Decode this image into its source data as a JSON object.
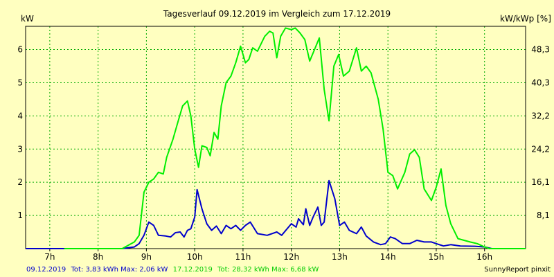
{
  "chart_data": {
    "type": "line",
    "title": "Tagesverlauf 09.12.2019 im Vergleich zum 17.12.2019",
    "ylabel_left": "kW",
    "ylabel_right": "kW/kWp [%]",
    "x_ticks": [
      "7h",
      "8h",
      "9h",
      "10h",
      "11h",
      "12h",
      "13h",
      "14h",
      "15h",
      "16h"
    ],
    "y_ticks_left": [
      "1",
      "2",
      "3",
      "4",
      "5",
      "6"
    ],
    "y_ticks_right": [
      "8,1",
      "16,1",
      "24,2",
      "32,2",
      "40,3",
      "48,3"
    ],
    "xlim": [
      6.5,
      16.85
    ],
    "ylim": [
      0,
      6.7
    ],
    "grid": true,
    "series": [
      {
        "name": "09.12.2019",
        "color": "#0000cc",
        "points": [
          [
            6.5,
            0
          ],
          [
            7.3,
            0
          ],
          [
            8.5,
            0
          ],
          [
            8.6,
            0.02
          ],
          [
            8.75,
            0.05
          ],
          [
            8.85,
            0.15
          ],
          [
            8.95,
            0.4
          ],
          [
            9.05,
            0.8
          ],
          [
            9.15,
            0.7
          ],
          [
            9.25,
            0.4
          ],
          [
            9.4,
            0.38
          ],
          [
            9.5,
            0.35
          ],
          [
            9.6,
            0.48
          ],
          [
            9.7,
            0.5
          ],
          [
            9.78,
            0.35
          ],
          [
            9.85,
            0.55
          ],
          [
            9.92,
            0.6
          ],
          [
            10.0,
            0.95
          ],
          [
            10.05,
            1.78
          ],
          [
            10.15,
            1.2
          ],
          [
            10.25,
            0.75
          ],
          [
            10.35,
            0.55
          ],
          [
            10.45,
            0.68
          ],
          [
            10.55,
            0.45
          ],
          [
            10.65,
            0.7
          ],
          [
            10.75,
            0.6
          ],
          [
            10.85,
            0.7
          ],
          [
            10.95,
            0.55
          ],
          [
            11.05,
            0.7
          ],
          [
            11.15,
            0.8
          ],
          [
            11.3,
            0.45
          ],
          [
            11.5,
            0.4
          ],
          [
            11.7,
            0.5
          ],
          [
            11.8,
            0.4
          ],
          [
            12.0,
            0.75
          ],
          [
            12.1,
            0.65
          ],
          [
            12.15,
            0.9
          ],
          [
            12.25,
            0.72
          ],
          [
            12.3,
            1.2
          ],
          [
            12.38,
            0.7
          ],
          [
            12.45,
            0.95
          ],
          [
            12.55,
            1.25
          ],
          [
            12.62,
            0.7
          ],
          [
            12.68,
            0.8
          ],
          [
            12.78,
            2.05
          ],
          [
            12.9,
            1.5
          ],
          [
            13.0,
            0.7
          ],
          [
            13.1,
            0.8
          ],
          [
            13.2,
            0.55
          ],
          [
            13.35,
            0.45
          ],
          [
            13.45,
            0.65
          ],
          [
            13.55,
            0.38
          ],
          [
            13.7,
            0.2
          ],
          [
            13.85,
            0.12
          ],
          [
            13.95,
            0.15
          ],
          [
            14.05,
            0.35
          ],
          [
            14.15,
            0.3
          ],
          [
            14.3,
            0.15
          ],
          [
            14.45,
            0.15
          ],
          [
            14.6,
            0.25
          ],
          [
            14.75,
            0.2
          ],
          [
            14.9,
            0.2
          ],
          [
            15.0,
            0.15
          ],
          [
            15.15,
            0.08
          ],
          [
            15.3,
            0.12
          ],
          [
            15.5,
            0.08
          ],
          [
            15.8,
            0.07
          ],
          [
            16.0,
            0.05
          ],
          [
            16.15,
            0
          ],
          [
            16.85,
            0
          ]
        ]
      },
      {
        "name": "17.12.2019",
        "color": "#00ee00",
        "points": [
          [
            7.3,
            0
          ],
          [
            8.5,
            0
          ],
          [
            8.75,
            0.2
          ],
          [
            8.85,
            0.4
          ],
          [
            8.95,
            1.7
          ],
          [
            9.05,
            2.0
          ],
          [
            9.15,
            2.1
          ],
          [
            9.25,
            2.3
          ],
          [
            9.35,
            2.25
          ],
          [
            9.42,
            2.75
          ],
          [
            9.55,
            3.3
          ],
          [
            9.65,
            3.8
          ],
          [
            9.75,
            4.3
          ],
          [
            9.85,
            4.45
          ],
          [
            9.92,
            4.0
          ],
          [
            10.0,
            3.0
          ],
          [
            10.08,
            2.45
          ],
          [
            10.15,
            3.1
          ],
          [
            10.25,
            3.05
          ],
          [
            10.32,
            2.8
          ],
          [
            10.4,
            3.5
          ],
          [
            10.48,
            3.3
          ],
          [
            10.55,
            4.3
          ],
          [
            10.65,
            5.0
          ],
          [
            10.75,
            5.2
          ],
          [
            10.85,
            5.6
          ],
          [
            10.95,
            6.1
          ],
          [
            11.05,
            5.6
          ],
          [
            11.12,
            5.7
          ],
          [
            11.2,
            6.05
          ],
          [
            11.3,
            5.95
          ],
          [
            11.45,
            6.4
          ],
          [
            11.55,
            6.55
          ],
          [
            11.62,
            6.5
          ],
          [
            11.7,
            5.75
          ],
          [
            11.78,
            6.4
          ],
          [
            11.88,
            6.65
          ],
          [
            12.0,
            6.6
          ],
          [
            12.08,
            6.65
          ],
          [
            12.18,
            6.5
          ],
          [
            12.28,
            6.3
          ],
          [
            12.38,
            5.65
          ],
          [
            12.48,
            6.0
          ],
          [
            12.58,
            6.35
          ],
          [
            12.68,
            4.8
          ],
          [
            12.78,
            3.85
          ],
          [
            12.88,
            5.5
          ],
          [
            12.98,
            5.85
          ],
          [
            13.08,
            5.2
          ],
          [
            13.2,
            5.35
          ],
          [
            13.35,
            6.05
          ],
          [
            13.45,
            5.35
          ],
          [
            13.55,
            5.5
          ],
          [
            13.65,
            5.3
          ],
          [
            13.8,
            4.5
          ],
          [
            13.9,
            3.6
          ],
          [
            14.0,
            2.3
          ],
          [
            14.1,
            2.2
          ],
          [
            14.2,
            1.8
          ],
          [
            14.35,
            2.3
          ],
          [
            14.45,
            2.85
          ],
          [
            14.55,
            2.98
          ],
          [
            14.65,
            2.75
          ],
          [
            14.75,
            1.8
          ],
          [
            14.9,
            1.45
          ],
          [
            15.0,
            1.85
          ],
          [
            15.1,
            2.4
          ],
          [
            15.2,
            1.3
          ],
          [
            15.3,
            0.75
          ],
          [
            15.45,
            0.3
          ],
          [
            15.7,
            0.2
          ],
          [
            15.85,
            0.15
          ],
          [
            16.0,
            0.05
          ],
          [
            16.1,
            0
          ],
          [
            16.85,
            0
          ]
        ]
      }
    ]
  },
  "footer": {
    "date1": "09.12.2019",
    "stats1": "Tot: 3,83 kWh Max: 2,06 kW",
    "date2": "17.12.2019",
    "stats2": "Tot: 28,32 kWh Max: 6,68 kW",
    "credit": "SunnyReport pinxit"
  }
}
